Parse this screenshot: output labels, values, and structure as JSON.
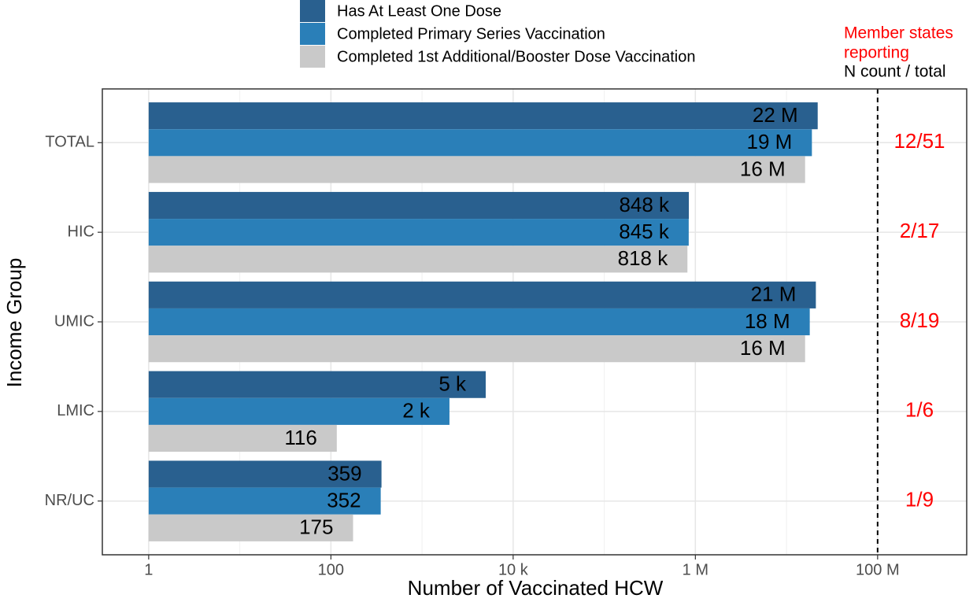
{
  "chart_data": {
    "type": "bar",
    "orientation": "horizontal",
    "categories": [
      "TOTAL",
      "HIC",
      "UMIC",
      "LMIC",
      "NR/UC"
    ],
    "series": [
      {
        "name": "Has At Least One Dose",
        "color": "#29608f",
        "values": [
          22000000,
          848000,
          21000000,
          5000,
          359
        ],
        "value_labels": [
          "22 M",
          "848 k",
          "21 M",
          "5 k",
          "359"
        ]
      },
      {
        "name": "Completed Primary Series Vaccination",
        "color": "#2a7fb8",
        "values": [
          19000000,
          845000,
          18000000,
          2000,
          352
        ],
        "value_labels": [
          "19 M",
          "845 k",
          "18 M",
          "2 k",
          "352"
        ]
      },
      {
        "name": "Completed 1st Additional/Booster Dose Vaccination",
        "color": "#c9c9c9",
        "values": [
          16000000,
          818000,
          16000000,
          116,
          175
        ],
        "value_labels": [
          "16 M",
          "818 k",
          "16 M",
          "116",
          "175"
        ]
      }
    ],
    "x_label": "Number of Vaccinated HCW",
    "y_label": "Income Group",
    "log_scale": true,
    "xlim": [
      0.31,
      950000000
    ],
    "xticks": [
      1,
      100,
      {
        "value": 10000,
        "label": "10 k"
      },
      {
        "value": 1000000,
        "label": "1 M"
      },
      {
        "value": 100000000,
        "label": "100 M"
      }
    ],
    "minor_xticks": [
      10,
      1000,
      100000,
      10000000
    ],
    "grid": true,
    "reference_line": 100000000,
    "annotation_title": [
      "Member states",
      "reporting"
    ],
    "annotation_subtitle": "N count / total",
    "reporting": [
      "12/51",
      "2/17",
      "8/19",
      "1/6",
      "1/9"
    ],
    "legend": "top"
  }
}
